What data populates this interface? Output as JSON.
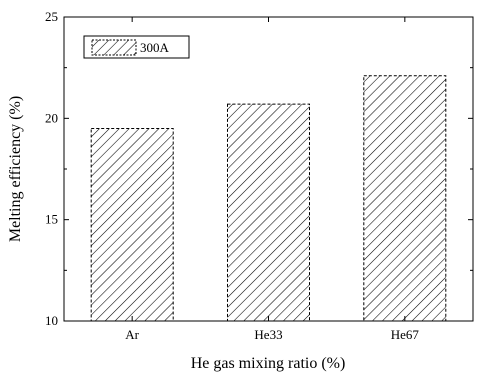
{
  "chart_data": {
    "type": "bar",
    "categories": [
      "Ar",
      "He33",
      "He67"
    ],
    "series": [
      {
        "name": "300A",
        "values": [
          19.5,
          20.7,
          22.1
        ]
      }
    ],
    "xlabel": "He gas mixing ratio (%)",
    "ylabel": "Melting efficiency (%)",
    "ylim": [
      10,
      25
    ],
    "yticks": [
      "10",
      "15",
      "20",
      "25"
    ],
    "grid": false,
    "legend_position": "top-left",
    "bar_pattern": "diagonal-hatch",
    "bar_color": "#000000",
    "background": "#ffffff"
  }
}
